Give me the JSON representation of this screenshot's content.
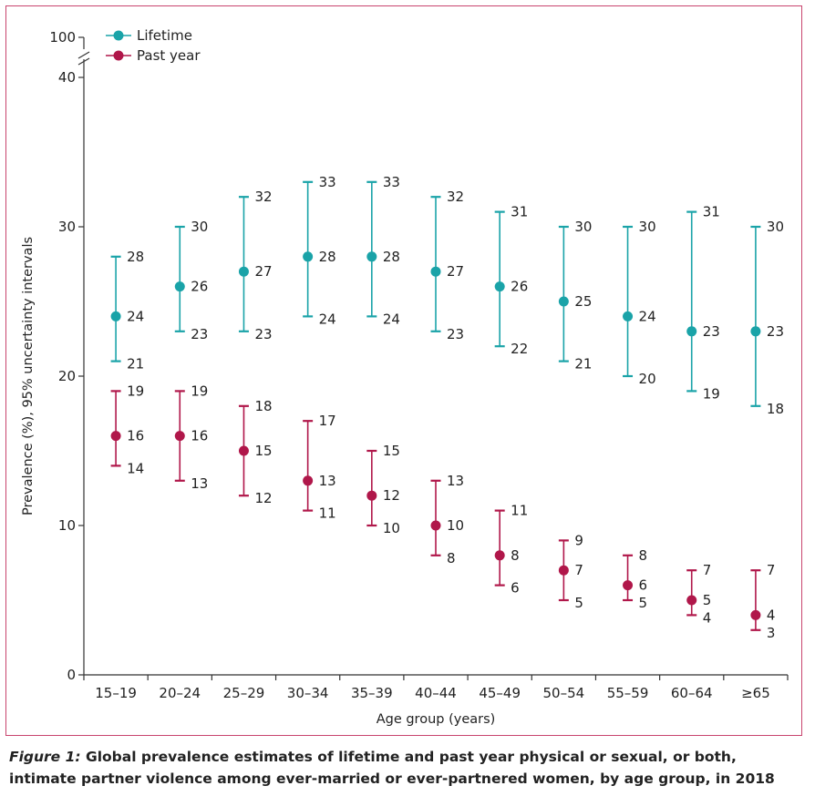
{
  "chart_data": {
    "type": "scatter",
    "title": "",
    "xlabel": "Age group (years)",
    "ylabel": "Prevalence (%), 95% uncertainty intervals",
    "ylim": [
      0,
      40
    ],
    "yticks": [
      0,
      10,
      20,
      30,
      40
    ],
    "broken_axis_top_label": "100",
    "categories": [
      "15–19",
      "20–24",
      "25–29",
      "30–34",
      "35–39",
      "40–44",
      "45–49",
      "50–54",
      "55–59",
      "60–64",
      "≥65"
    ],
    "series": [
      {
        "name": "Lifetime",
        "color": "#1aa3a8",
        "values": [
          24,
          26,
          27,
          28,
          28,
          27,
          26,
          25,
          24,
          23,
          23
        ],
        "lower": [
          21,
          23,
          23,
          24,
          24,
          23,
          22,
          21,
          20,
          19,
          18
        ],
        "upper": [
          28,
          30,
          32,
          33,
          33,
          32,
          31,
          30,
          30,
          31,
          30
        ]
      },
      {
        "name": "Past year",
        "color": "#b0174a",
        "values": [
          16,
          16,
          15,
          13,
          12,
          10,
          8,
          7,
          6,
          5,
          4
        ],
        "lower": [
          14,
          13,
          12,
          11,
          10,
          8,
          6,
          5,
          5,
          4,
          3
        ],
        "upper": [
          19,
          19,
          18,
          17,
          15,
          13,
          11,
          9,
          8,
          7,
          7
        ]
      }
    ]
  },
  "caption": {
    "figure_label": "Figure 1:",
    "text": " Global prevalence estimates of lifetime and past year physical or sexual, or both, intimate partner violence among ever-married or ever-partnered women, by age group, in 2018"
  }
}
